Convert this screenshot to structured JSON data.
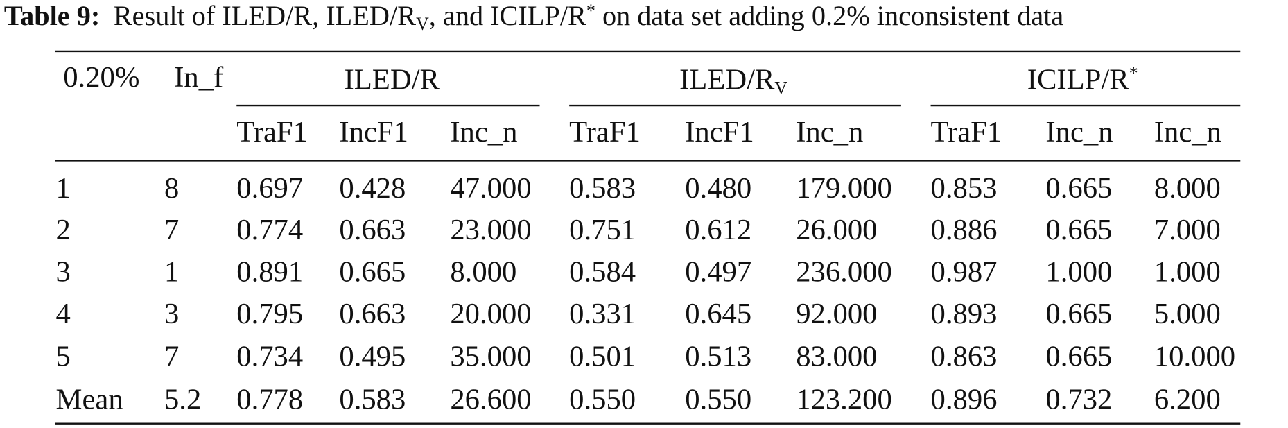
{
  "caption": {
    "label": "Table 9:",
    "parts": [
      "Result of ILED/R, ILED/R",
      "V",
      ", and ICILP/R",
      "*",
      " on data set adding 0.2% inconsistent data"
    ]
  },
  "header": {
    "corner": [
      "0.20%",
      "In_f"
    ],
    "groups": [
      {
        "text": "ILED/R"
      },
      {
        "text": "ILED/R",
        "sub": "V"
      },
      {
        "text": "ICILP/R",
        "sup": "*"
      }
    ],
    "columns": [
      "TraF1",
      "IncF1",
      "Inc_n",
      "TraF1",
      "IncF1",
      "Inc_n",
      "TraF1",
      "Inc_n",
      "Inc_n"
    ]
  },
  "table": {
    "rows": [
      [
        "1",
        "8",
        "0.697",
        "0.428",
        "47.000",
        "0.583",
        "0.480",
        "179.000",
        "0.853",
        "0.665",
        "8.000"
      ],
      [
        "2",
        "7",
        "0.774",
        "0.663",
        "23.000",
        "0.751",
        "0.612",
        "26.000",
        "0.886",
        "0.665",
        "7.000"
      ],
      [
        "3",
        "1",
        "0.891",
        "0.665",
        "8.000",
        "0.584",
        "0.497",
        "236.000",
        "0.987",
        "1.000",
        "1.000"
      ],
      [
        "4",
        "3",
        "0.795",
        "0.663",
        "20.000",
        "0.331",
        "0.645",
        "92.000",
        "0.893",
        "0.665",
        "5.000"
      ],
      [
        "5",
        "7",
        "0.734",
        "0.495",
        "35.000",
        "0.501",
        "0.513",
        "83.000",
        "0.863",
        "0.665",
        "10.000"
      ],
      [
        "Mean",
        "5.2",
        "0.778",
        "0.583",
        "26.600",
        "0.550",
        "0.550",
        "123.200",
        "0.896",
        "0.732",
        "6.200"
      ]
    ]
  }
}
